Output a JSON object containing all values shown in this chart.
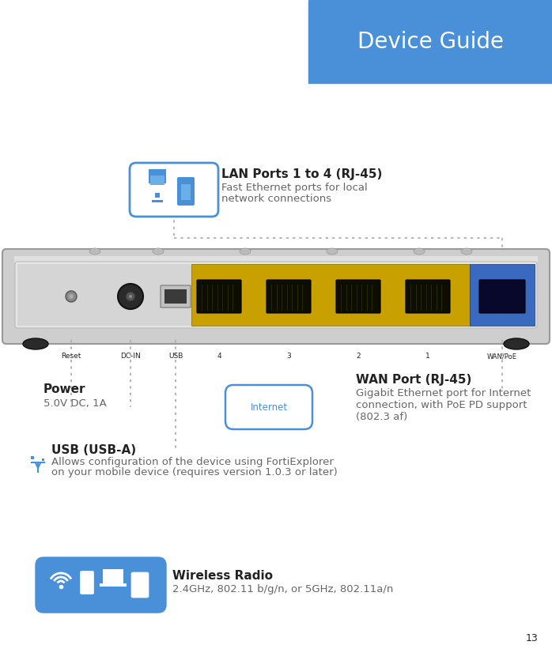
{
  "bg_color": "#ffffff",
  "header_bg": "#4a90d9",
  "header_text": "Device Guide",
  "header_text_color": "#ffffff",
  "page_number": "13",
  "lan_title": "LAN Ports 1 to 4 (RJ-45)",
  "lan_desc1": "Fast Ethernet ports for local",
  "lan_desc2": "network connections",
  "wan_title": "WAN Port (RJ-45)",
  "wan_desc1": "Gigabit Ethernet port for Internet",
  "wan_desc2": "connection, with PoE PD support",
  "wan_desc3": "(802.3 af)",
  "usb_title": "USB (USB-A)",
  "usb_desc1": "Allows configuration of the device using FortiExplorer",
  "usb_desc2": "on your mobile device (requires version 1.0.3 or later)",
  "power_title": "Power",
  "power_desc": "5.0V DC, 1A",
  "wireless_title": "Wireless Radio",
  "wireless_desc": "2.4GHz, 802.11 b/g/n, or 5GHz, 802.11a/n",
  "internet_label": "Internet",
  "blue_color": "#4a90d9",
  "dark_text": "#222222",
  "gray_text": "#666666",
  "dotted_color": "#aaaaaa",
  "lan_port_color": "#c8a000",
  "wan_port_color": "#3a6abf"
}
